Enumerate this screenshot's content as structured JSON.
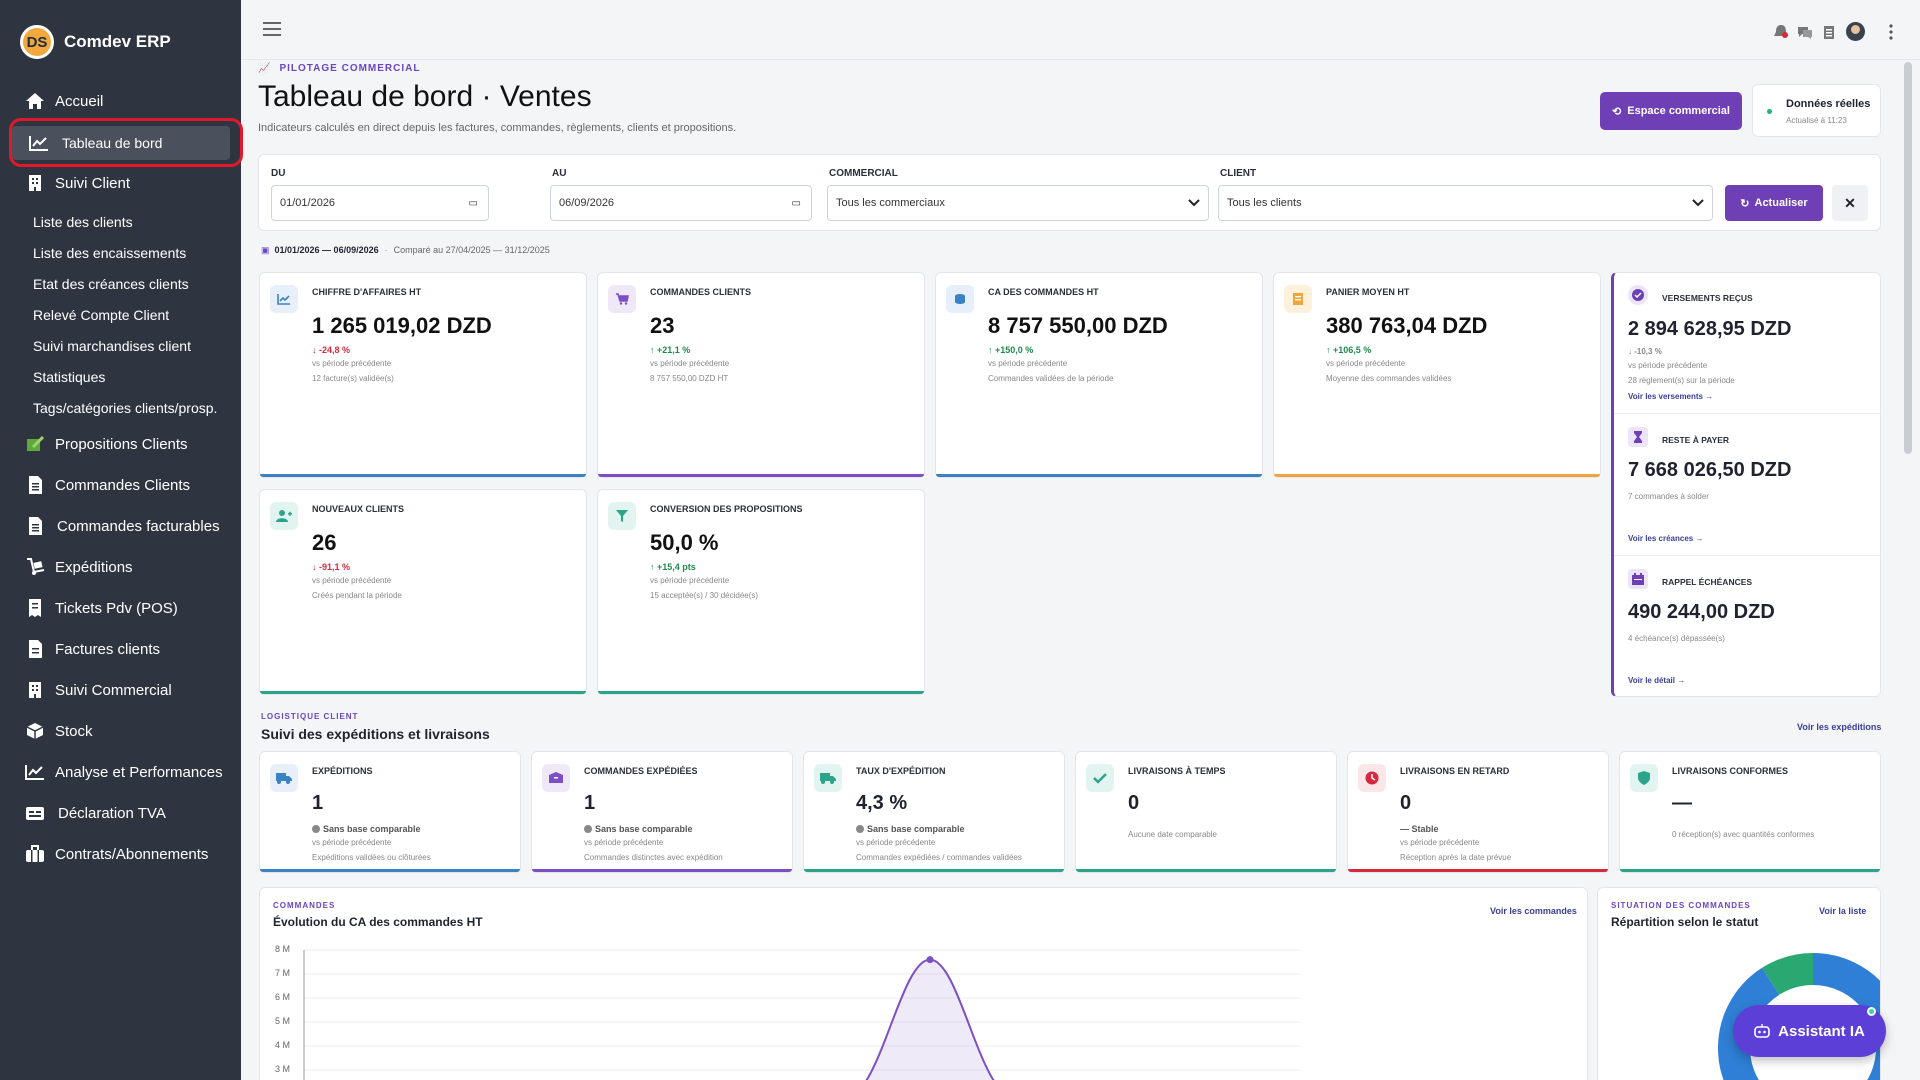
{
  "app": {
    "name": "Comdev ERP",
    "logo_text": "DS"
  },
  "sidebar": {
    "items": [
      {
        "label": "Accueil",
        "icon": "home-icon"
      },
      {
        "label": "Tableau de bord",
        "icon": "chart-line-icon",
        "active": true
      },
      {
        "label": "Suivi Client",
        "icon": "building-icon"
      },
      {
        "label": "Propositions Clients",
        "icon": "proposal-icon"
      },
      {
        "label": "Commandes Clients",
        "icon": "document-icon"
      },
      {
        "label": "Commandes facturables",
        "icon": "document-icon"
      },
      {
        "label": "Expéditions",
        "icon": "dolly-icon"
      },
      {
        "label": "Tickets Pdv (POS)",
        "icon": "receipt-icon"
      },
      {
        "label": "Factures clients",
        "icon": "invoice-icon"
      },
      {
        "label": "Suivi Commercial",
        "icon": "building-icon"
      },
      {
        "label": "Stock",
        "icon": "box-icon"
      },
      {
        "label": "Analyse et Performances",
        "icon": "chart-line-icon"
      },
      {
        "label": "Déclaration TVA",
        "icon": "tax-icon"
      },
      {
        "label": "Contrats/Abonnements",
        "icon": "briefcase-icon"
      }
    ],
    "subitems": [
      "Liste des clients",
      "Liste des encaissements",
      "Etat des créances clients",
      "Relevé Compte Client",
      "Suivi marchandises client",
      "Statistiques",
      "Tags/catégories clients/prosp."
    ]
  },
  "header": {
    "eyebrow": "PILOTAGE COMMERCIAL",
    "title": "Tableau de bord · Ventes",
    "subtitle": "Indicateurs calculés en direct depuis les factures, commandes, règlements, clients et propositions.",
    "btn_espace": "Espace commercial",
    "data_status": "Données réelles",
    "updated": "Actualisé à 11:23"
  },
  "filters": {
    "du_label": "DU",
    "du_value": "01/01/2026",
    "au_label": "AU",
    "au_value": "06/09/2026",
    "commercial_label": "COMMERCIAL",
    "commercial_value": "Tous les commerciaux",
    "client_label": "CLIENT",
    "client_value": "Tous les clients",
    "refresh": "Actualiser"
  },
  "period": {
    "range": "01/01/2026 — 06/09/2026",
    "compare": "Comparé au 27/04/2025 — 31/12/2025"
  },
  "kpis": [
    {
      "label": "CHIFFRE D'AFFAIRES HT",
      "value": "1 265 019,02 DZD",
      "delta": "-24,8 %",
      "sub1": "vs période précédente",
      "sub2": "12 facture(s) validée(s)",
      "color": "#3b82c4"
    },
    {
      "label": "COMMANDES CLIENTS",
      "value": "23",
      "delta": "+21,1 %",
      "sub1": "vs période précédente",
      "sub2": "8 757 550,00 DZD HT",
      "color": "#7c4fc4"
    },
    {
      "label": "CA DES COMMANDES HT",
      "value": "8 757 550,00 DZD",
      "delta": "+150,0 %",
      "sub1": "vs période précédente",
      "sub2": "Commandes validées de la période",
      "color": "#3b82c4"
    },
    {
      "label": "PANIER MOYEN HT",
      "value": "380 763,04 DZD",
      "delta": "+106,5 %",
      "sub1": "vs période précédente",
      "sub2": "Moyenne des commandes validées",
      "color": "#f0a53a"
    },
    {
      "label": "NOUVEAUX CLIENTS",
      "value": "26",
      "delta": "-91,1 %",
      "sub1": "vs période précédente",
      "sub2": "Créés pendant la période",
      "color": "#2aa58c"
    },
    {
      "label": "CONVERSION DES PROPOSITIONS",
      "value": "50,0 %",
      "delta": "+15,4 pts",
      "sub1": "vs période précédente",
      "sub2": "15 acceptée(s) / 30 décidée(s)",
      "color": "#2aa58c"
    }
  ],
  "right_panel": [
    {
      "label": "VERSEMENTS REÇUS",
      "value": "2 894 628,95 DZD",
      "delta": "-10,3 %",
      "sub1": "vs période précédente",
      "sub2": "28 règlement(s) sur la période",
      "link": "Voir les versements →"
    },
    {
      "label": "RESTE À PAYER",
      "value": "7 668 026,50 DZD",
      "sub1": "7 commandes à solder",
      "link": "Voir les créances →"
    },
    {
      "label": "RAPPEL ÉCHÉANCES",
      "value": "490 244,00 DZD",
      "sub1": "4 échéance(s) dépassée(s)",
      "link": "Voir le détail →"
    }
  ],
  "logistics": {
    "eyebrow": "LOGISTIQUE CLIENT",
    "title": "Suivi des expéditions et livraisons",
    "link": "Voir les expéditions",
    "cards": [
      {
        "label": "EXPÉDITIONS",
        "value": "1",
        "s1": "Sans base comparable",
        "s2": "vs période précédente",
        "s3": "Expéditions validées ou clôturées",
        "color": "#3b82c4"
      },
      {
        "label": "COMMANDES EXPÉDIÉES",
        "value": "1",
        "s1": "Sans base comparable",
        "s2": "vs période précédente",
        "s3": "Commandes distinctes avec expédition",
        "color": "#7c4fc4"
      },
      {
        "label": "TAUX D'EXPÉDITION",
        "value": "4,3 %",
        "s1": "Sans base comparable",
        "s2": "vs période précédente",
        "s3": "Commandes expédiées / commandes validées",
        "color": "#2aa58c"
      },
      {
        "label": "LIVRAISONS À TEMPS",
        "value": "0",
        "s1": "",
        "s2": "Aucune date comparable",
        "s3": "",
        "color": "#2aa58c"
      },
      {
        "label": "LIVRAISONS EN RETARD",
        "value": "0",
        "s1": "— Stable",
        "s2": "vs période précédente",
        "s3": "Réception après la date prévue",
        "color": "#d6293e"
      },
      {
        "label": "LIVRAISONS CONFORMES",
        "value": "—",
        "s1": "",
        "s2": "0 réception(s) avec quantités conformes",
        "s3": "",
        "color": "#2aa58c"
      }
    ]
  },
  "orders_chart": {
    "eyebrow": "COMMANDES",
    "title": "Évolution du CA des commandes HT",
    "link": "Voir les commandes",
    "chart_data": {
      "type": "area",
      "yticks": [
        "8 M",
        "7 M",
        "6 M",
        "5 M",
        "4 M",
        "3 M"
      ],
      "ylim": [
        0,
        8
      ],
      "peak": 7.6
    }
  },
  "status_chart": {
    "eyebrow": "SITUATION DES COMMANDES",
    "title": "Répartition selon le statut",
    "link": "Voir la liste",
    "chart_data": {
      "type": "pie",
      "slices": [
        {
          "value": 0.91,
          "color": "#2f7fd6"
        },
        {
          "value": 0.09,
          "color": "#2aa872"
        }
      ]
    }
  },
  "assistant": {
    "label": "Assistant IA"
  }
}
